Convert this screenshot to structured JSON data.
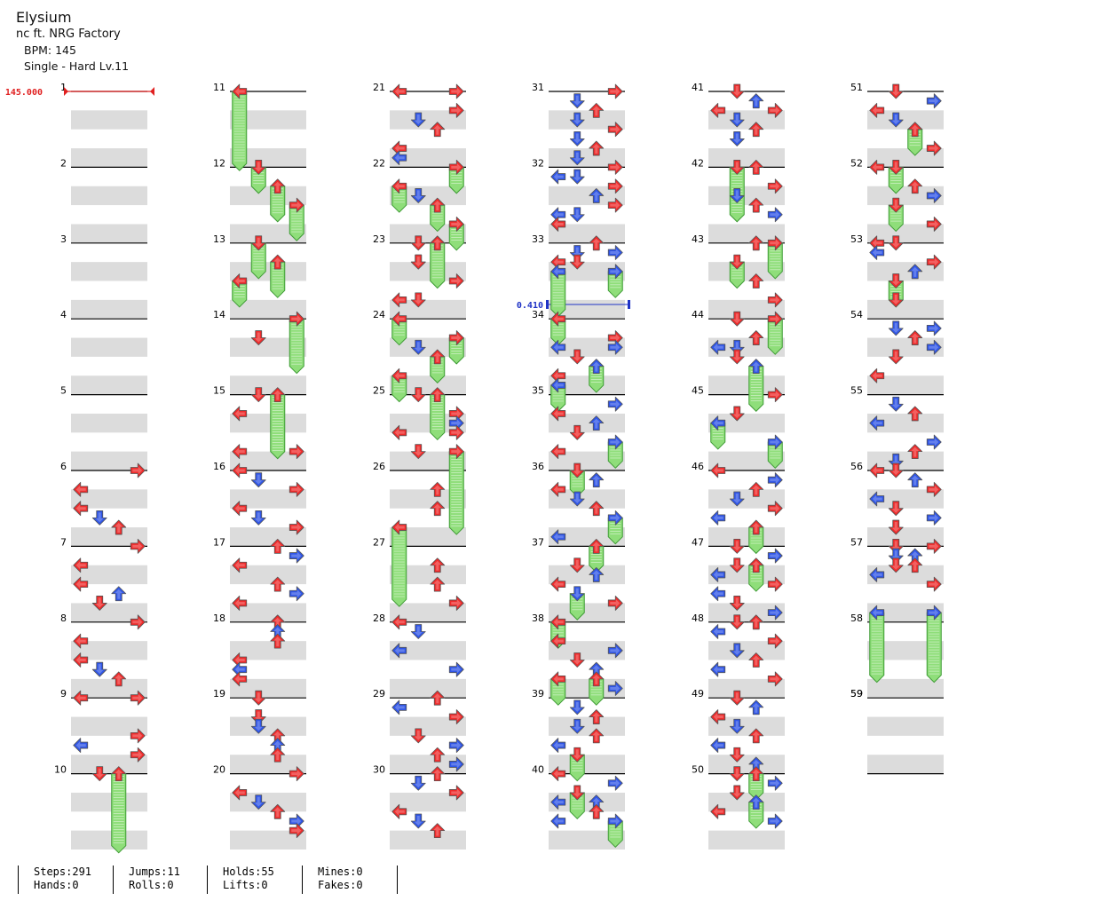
{
  "song": {
    "title": "Elysium",
    "artist": "nc ft. NRG Factory",
    "bpm_label": "BPM: 145",
    "difficulty_label": "Single - Hard  Lv.11"
  },
  "markers": {
    "bpm_change": {
      "measure": 1,
      "beat": 0,
      "text": "145.000"
    },
    "stop": {
      "measure": 34,
      "beat": -0.25,
      "text": "0.410"
    }
  },
  "colors": {
    "red": "#ee2b2b",
    "blue": "#2f55e6",
    "yellow": "#f5dc1c",
    "hold_fill": "#8fde7a",
    "hold_stroke": "#3e9b35",
    "stripe": "#dcdcdc",
    "measure_line": "#000000",
    "bpm_color": "#e02020",
    "stop_color": "#1f33c6"
  },
  "measure_count": 59,
  "notes": [
    {
      "m": 6,
      "b": 0,
      "l": 3
    },
    {
      "m": 6,
      "b": 1,
      "l": 0
    },
    {
      "m": 6,
      "b": 2,
      "l": 0
    },
    {
      "m": 6,
      "b": 2.5,
      "l": 1
    },
    {
      "m": 6,
      "b": 3,
      "l": 2
    },
    {
      "m": 7,
      "b": 0,
      "l": 3
    },
    {
      "m": 7,
      "b": 1,
      "l": 0
    },
    {
      "m": 7,
      "b": 2,
      "l": 0
    },
    {
      "m": 7,
      "b": 2.5,
      "l": 2
    },
    {
      "m": 7,
      "b": 3,
      "l": 1
    },
    {
      "m": 8,
      "b": 0,
      "l": 3
    },
    {
      "m": 8,
      "b": 1,
      "l": 0
    },
    {
      "m": 8,
      "b": 2,
      "l": 0
    },
    {
      "m": 8,
      "b": 2.5,
      "l": 1
    },
    {
      "m": 8,
      "b": 3,
      "l": 2
    },
    {
      "m": 9,
      "b": 0,
      "l": 0
    },
    {
      "m": 9,
      "b": 0,
      "l": 3
    },
    {
      "m": 9,
      "b": 2,
      "l": 3
    },
    {
      "m": 9,
      "b": 2.5,
      "l": 0
    },
    {
      "m": 9,
      "b": 3,
      "l": 3
    },
    {
      "m": 10,
      "b": 0,
      "l": 1
    },
    {
      "m": 10,
      "b": 0,
      "l": 2,
      "hold": 3.8
    },
    {
      "m": 11,
      "b": 0,
      "l": 0,
      "hold": 3.8
    },
    {
      "m": 12,
      "b": 0,
      "l": 1,
      "hold": 1
    },
    {
      "m": 12,
      "b": 1,
      "l": 2,
      "hold": 1.5
    },
    {
      "m": 12,
      "b": 2,
      "l": 3,
      "hold": 1.5
    },
    {
      "m": 13,
      "b": 0,
      "l": 1,
      "hold": 1.5
    },
    {
      "m": 13,
      "b": 1,
      "l": 2,
      "hold": 1.5
    },
    {
      "m": 13,
      "b": 2,
      "l": 0,
      "hold": 1
    },
    {
      "m": 14,
      "b": 0,
      "l": 3,
      "hold": 2.5
    },
    {
      "m": 14,
      "b": 1,
      "l": 1
    },
    {
      "m": 15,
      "b": 0,
      "l": 1
    },
    {
      "m": 15,
      "b": 0,
      "l": 2,
      "hold": 3
    },
    {
      "m": 15,
      "b": 1,
      "l": 0
    },
    {
      "m": 15,
      "b": 3,
      "l": 0
    },
    {
      "m": 15,
      "b": 3,
      "l": 3
    },
    {
      "m": 16,
      "b": 0,
      "l": 0
    },
    {
      "m": 16,
      "b": 0.5,
      "l": 1
    },
    {
      "m": 16,
      "b": 1,
      "l": 3
    },
    {
      "m": 16,
      "b": 2,
      "l": 0
    },
    {
      "m": 16,
      "b": 2.5,
      "l": 1
    },
    {
      "m": 16,
      "b": 3,
      "l": 3
    },
    {
      "m": 17,
      "b": 0,
      "l": 2
    },
    {
      "m": 17,
      "b": 0.5,
      "l": 3
    },
    {
      "m": 17,
      "b": 1,
      "l": 0
    },
    {
      "m": 17,
      "b": 2,
      "l": 2
    },
    {
      "m": 17,
      "b": 2.5,
      "l": 3
    },
    {
      "m": 17,
      "b": 3,
      "l": 0
    },
    {
      "m": 18,
      "b": 0,
      "l": 2
    },
    {
      "m": 18,
      "b": 0.5,
      "l": 2
    },
    {
      "m": 18,
      "b": 1,
      "l": 2
    },
    {
      "m": 18,
      "b": 2,
      "l": 0
    },
    {
      "m": 18,
      "b": 2.5,
      "l": 0
    },
    {
      "m": 18,
      "b": 3,
      "l": 0
    },
    {
      "m": 19,
      "b": 0,
      "l": 1
    },
    {
      "m": 19,
      "b": 1,
      "l": 1
    },
    {
      "m": 19,
      "b": 1.5,
      "l": 1
    },
    {
      "m": 19,
      "b": 2,
      "l": 2
    },
    {
      "m": 19,
      "b": 2.5,
      "l": 2
    },
    {
      "m": 19,
      "b": 3,
      "l": 2
    },
    {
      "m": 20,
      "b": 0,
      "l": 3
    },
    {
      "m": 20,
      "b": 1,
      "l": 0
    },
    {
      "m": 20,
      "b": 1.5,
      "l": 1
    },
    {
      "m": 20,
      "b": 2,
      "l": 2
    },
    {
      "m": 20,
      "b": 2.5,
      "l": 3
    },
    {
      "m": 20,
      "b": 3,
      "l": 3
    },
    {
      "m": 21,
      "b": 0,
      "l": 0
    },
    {
      "m": 21,
      "b": 0,
      "l": 3
    },
    {
      "m": 21,
      "b": 1,
      "l": 3
    },
    {
      "m": 21,
      "b": 1.5,
      "l": 1
    },
    {
      "m": 21,
      "b": 2,
      "l": 2
    },
    {
      "m": 21,
      "b": 3,
      "l": 0
    },
    {
      "m": 21,
      "b": 3.5,
      "l": 0
    },
    {
      "m": 22,
      "b": 0,
      "l": 3,
      "hold": 1
    },
    {
      "m": 22,
      "b": 1,
      "l": 0,
      "hold": 1
    },
    {
      "m": 22,
      "b": 1.5,
      "l": 1
    },
    {
      "m": 22,
      "b": 2,
      "l": 2,
      "hold": 1
    },
    {
      "m": 22,
      "b": 3,
      "l": 3,
      "hold": 1
    },
    {
      "m": 23,
      "b": 0,
      "l": 1
    },
    {
      "m": 23,
      "b": 0,
      "l": 2,
      "hold": 2
    },
    {
      "m": 23,
      "b": 1,
      "l": 1
    },
    {
      "m": 23,
      "b": 1,
      "l": 1
    },
    {
      "m": 23,
      "b": 2,
      "l": 3
    },
    {
      "m": 23,
      "b": 3,
      "l": 0
    },
    {
      "m": 23,
      "b": 3,
      "l": 1
    },
    {
      "m": 24,
      "b": 0,
      "l": 0,
      "hold": 1
    },
    {
      "m": 24,
      "b": 1,
      "l": 3,
      "hold": 1
    },
    {
      "m": 24,
      "b": 1.5,
      "l": 1
    },
    {
      "m": 24,
      "b": 2,
      "l": 2,
      "hold": 1
    },
    {
      "m": 24,
      "b": 3,
      "l": 0,
      "hold": 1
    },
    {
      "m": 25,
      "b": 0,
      "l": 1
    },
    {
      "m": 25,
      "b": 0,
      "l": 2,
      "hold": 2
    },
    {
      "m": 25,
      "b": 1,
      "l": 3
    },
    {
      "m": 25,
      "b": 1.5,
      "l": 3
    },
    {
      "m": 25,
      "b": 2,
      "l": 0
    },
    {
      "m": 25,
      "b": 2,
      "l": 3
    },
    {
      "m": 25,
      "b": 3,
      "l": 1
    },
    {
      "m": 25,
      "b": 3,
      "l": 3,
      "hold": 4
    },
    {
      "m": 26,
      "b": 1,
      "l": 2
    },
    {
      "m": 26,
      "b": 2,
      "l": 2
    },
    {
      "m": 26,
      "b": 3,
      "l": 0,
      "hold": 3.8
    },
    {
      "m": 27,
      "b": 1,
      "l": 2
    },
    {
      "m": 27,
      "b": 2,
      "l": 2
    },
    {
      "m": 27,
      "b": 3,
      "l": 3
    },
    {
      "m": 28,
      "b": 0,
      "l": 0
    },
    {
      "m": 28,
      "b": 0.5,
      "l": 1
    },
    {
      "m": 28,
      "b": 1.5,
      "l": 0
    },
    {
      "m": 28,
      "b": 2.5,
      "l": 3
    },
    {
      "m": 29,
      "b": 0,
      "l": 2
    },
    {
      "m": 29,
      "b": 0.5,
      "l": 0
    },
    {
      "m": 29,
      "b": 1,
      "l": 3
    },
    {
      "m": 29,
      "b": 2,
      "l": 1
    },
    {
      "m": 29,
      "b": 2.5,
      "l": 3
    },
    {
      "m": 29,
      "b": 3,
      "l": 2
    },
    {
      "m": 29,
      "b": 3.5,
      "l": 3
    },
    {
      "m": 30,
      "b": 0,
      "l": 2
    },
    {
      "m": 30,
      "b": 0.5,
      "l": 1
    },
    {
      "m": 30,
      "b": 1,
      "l": 3
    },
    {
      "m": 30,
      "b": 2,
      "l": 0
    },
    {
      "m": 30,
      "b": 2.5,
      "l": 1
    },
    {
      "m": 30,
      "b": 3,
      "l": 2
    },
    {
      "m": 31,
      "b": 0,
      "l": 3
    },
    {
      "m": 31,
      "b": 0.5,
      "l": 1
    },
    {
      "m": 31,
      "b": 1,
      "l": 2
    },
    {
      "m": 31,
      "b": 1.5,
      "l": 1
    },
    {
      "m": 31,
      "b": 2,
      "l": 3
    },
    {
      "m": 31,
      "b": 2.5,
      "l": 1
    },
    {
      "m": 31,
      "b": 3,
      "l": 2
    },
    {
      "m": 31,
      "b": 3.5,
      "l": 1
    },
    {
      "m": 32,
      "b": 0,
      "l": 3
    },
    {
      "m": 32,
      "b": 0.5,
      "l": 0
    },
    {
      "m": 32,
      "b": 0.5,
      "l": 1
    },
    {
      "m": 32,
      "b": 1,
      "l": 3
    },
    {
      "m": 32,
      "b": 1.5,
      "l": 2
    },
    {
      "m": 32,
      "b": 2,
      "l": 3
    },
    {
      "m": 32,
      "b": 2.5,
      "l": 0
    },
    {
      "m": 32,
      "b": 2.5,
      "l": 1
    },
    {
      "m": 32,
      "b": 3,
      "l": 0
    },
    {
      "m": 33,
      "b": 0,
      "l": 2
    },
    {
      "m": 33,
      "b": 0.5,
      "l": 1
    },
    {
      "m": 33,
      "b": 0.5,
      "l": 3
    },
    {
      "m": 33,
      "b": 1,
      "l": 0
    },
    {
      "m": 33,
      "b": 1,
      "l": 1
    },
    {
      "m": 33,
      "b": 1.5,
      "l": 0,
      "hold": 2
    },
    {
      "m": 33,
      "b": 1.5,
      "l": 3,
      "hold": 1
    },
    {
      "m": 34,
      "b": 0,
      "l": 0,
      "hold": 1
    },
    {
      "m": 34,
      "b": 1,
      "l": 3
    },
    {
      "m": 34,
      "b": 1.5,
      "l": 0
    },
    {
      "m": 34,
      "b": 1.5,
      "l": 3
    },
    {
      "m": 34,
      "b": 2,
      "l": 1
    },
    {
      "m": 34,
      "b": 2.5,
      "l": 2,
      "hold": 1
    },
    {
      "m": 34,
      "b": 3,
      "l": 0
    },
    {
      "m": 34,
      "b": 3.5,
      "l": 0,
      "hold": 1
    },
    {
      "m": 35,
      "b": 0.5,
      "l": 3
    },
    {
      "m": 35,
      "b": 1,
      "l": 0
    },
    {
      "m": 35,
      "b": 1.5,
      "l": 2
    },
    {
      "m": 35,
      "b": 2,
      "l": 1
    },
    {
      "m": 35,
      "b": 2.5,
      "l": 3,
      "hold": 1
    },
    {
      "m": 35,
      "b": 3,
      "l": 0
    },
    {
      "m": 36,
      "b": 0,
      "l": 1,
      "hold": 1
    },
    {
      "m": 36,
      "b": 0.5,
      "l": 2
    },
    {
      "m": 36,
      "b": 1,
      "l": 0
    },
    {
      "m": 36,
      "b": 1.5,
      "l": 1
    },
    {
      "m": 36,
      "b": 2,
      "l": 2
    },
    {
      "m": 36,
      "b": 2.5,
      "l": 3,
      "hold": 1
    },
    {
      "m": 36,
      "b": 3.5,
      "l": 0
    },
    {
      "m": 37,
      "b": 0,
      "l": 2,
      "hold": 1
    },
    {
      "m": 37,
      "b": 1,
      "l": 1
    },
    {
      "m": 37,
      "b": 1.5,
      "l": 2
    },
    {
      "m": 37,
      "b": 2,
      "l": 0
    },
    {
      "m": 37,
      "b": 2.5,
      "l": 1,
      "hold": 1
    },
    {
      "m": 37,
      "b": 3,
      "l": 3
    },
    {
      "m": 38,
      "b": 0,
      "l": 0,
      "hold": 1
    },
    {
      "m": 38,
      "b": 1,
      "l": 0
    },
    {
      "m": 38,
      "b": 1.5,
      "l": 3
    },
    {
      "m": 38,
      "b": 2,
      "l": 1
    },
    {
      "m": 38,
      "b": 2.5,
      "l": 2
    },
    {
      "m": 38,
      "b": 3,
      "l": 0,
      "hold": 1
    },
    {
      "m": 38,
      "b": 3,
      "l": 2,
      "hold": 1
    },
    {
      "m": 38,
      "b": 3.5,
      "l": 3
    },
    {
      "m": 39,
      "b": 0.5,
      "l": 1
    },
    {
      "m": 39,
      "b": 1,
      "l": 2
    },
    {
      "m": 39,
      "b": 1.5,
      "l": 1
    },
    {
      "m": 39,
      "b": 2,
      "l": 2
    },
    {
      "m": 39,
      "b": 2.5,
      "l": 0
    },
    {
      "m": 39,
      "b": 3,
      "l": 1,
      "hold": 1
    },
    {
      "m": 40,
      "b": 0,
      "l": 0
    },
    {
      "m": 40,
      "b": 0.5,
      "l": 3
    },
    {
      "m": 40,
      "b": 1,
      "l": 1,
      "hold": 1
    },
    {
      "m": 40,
      "b": 1.5,
      "l": 0
    },
    {
      "m": 40,
      "b": 1.5,
      "l": 2
    },
    {
      "m": 40,
      "b": 2,
      "l": 2
    },
    {
      "m": 40,
      "b": 2.5,
      "l": 0
    },
    {
      "m": 40,
      "b": 2.5,
      "l": 3,
      "hold": 1
    },
    {
      "m": 41,
      "b": 0,
      "l": 1
    },
    {
      "m": 41,
      "b": 0.5,
      "l": 2
    },
    {
      "m": 41,
      "b": 1,
      "l": 0
    },
    {
      "m": 41,
      "b": 1,
      "l": 3
    },
    {
      "m": 41,
      "b": 1.5,
      "l": 1
    },
    {
      "m": 41,
      "b": 2,
      "l": 2
    },
    {
      "m": 41,
      "b": 2.5,
      "l": 1
    },
    {
      "m": 41,
      "b": 2.5,
      "l": 1
    },
    {
      "m": 42,
      "b": 0,
      "l": 2
    },
    {
      "m": 42,
      "b": 0,
      "l": 1,
      "hold": 2.5
    },
    {
      "m": 42,
      "b": 1,
      "l": 3
    },
    {
      "m": 42,
      "b": 1.5,
      "l": 1
    },
    {
      "m": 42,
      "b": 2,
      "l": 2
    },
    {
      "m": 42,
      "b": 2.5,
      "l": 3
    },
    {
      "m": 43,
      "b": 0,
      "l": 2
    },
    {
      "m": 43,
      "b": 0,
      "l": 3,
      "hold": 1.5
    },
    {
      "m": 43,
      "b": 1,
      "l": 1,
      "hold": 1
    },
    {
      "m": 43,
      "b": 2,
      "l": 2
    },
    {
      "m": 43,
      "b": 3,
      "l": 3
    },
    {
      "m": 44,
      "b": 0,
      "l": 1
    },
    {
      "m": 44,
      "b": 0,
      "l": 3,
      "hold": 1.5
    },
    {
      "m": 44,
      "b": 1,
      "l": 2
    },
    {
      "m": 44,
      "b": 1.5,
      "l": 0
    },
    {
      "m": 44,
      "b": 1.5,
      "l": 1
    },
    {
      "m": 44,
      "b": 2,
      "l": 1
    },
    {
      "m": 44,
      "b": 2.5,
      "l": 2,
      "hold": 2
    },
    {
      "m": 45,
      "b": 0,
      "l": 3
    },
    {
      "m": 45,
      "b": 1,
      "l": 1
    },
    {
      "m": 45,
      "b": 1.5,
      "l": 0,
      "hold": 1
    },
    {
      "m": 45,
      "b": 2.5,
      "l": 3,
      "hold": 1
    },
    {
      "m": 46,
      "b": 0,
      "l": 0
    },
    {
      "m": 46,
      "b": 0.5,
      "l": 3
    },
    {
      "m": 46,
      "b": 1,
      "l": 2
    },
    {
      "m": 46,
      "b": 1.5,
      "l": 1
    },
    {
      "m": 46,
      "b": 2,
      "l": 3
    },
    {
      "m": 46,
      "b": 2.5,
      "l": 0
    },
    {
      "m": 46,
      "b": 3,
      "l": 2,
      "hold": 1
    },
    {
      "m": 47,
      "b": 0,
      "l": 1
    },
    {
      "m": 47,
      "b": 0.5,
      "l": 3
    },
    {
      "m": 47,
      "b": 1,
      "l": 1
    },
    {
      "m": 47,
      "b": 1,
      "l": 2,
      "hold": 1
    },
    {
      "m": 47,
      "b": 1.5,
      "l": 0
    },
    {
      "m": 47,
      "b": 2,
      "l": 3
    },
    {
      "m": 47,
      "b": 2.5,
      "l": 0
    },
    {
      "m": 47,
      "b": 3,
      "l": 1
    },
    {
      "m": 47,
      "b": 3.5,
      "l": 3
    },
    {
      "m": 48,
      "b": 0,
      "l": 1
    },
    {
      "m": 48,
      "b": 0,
      "l": 2
    },
    {
      "m": 48,
      "b": 0.5,
      "l": 0
    },
    {
      "m": 48,
      "b": 1,
      "l": 3
    },
    {
      "m": 48,
      "b": 1.5,
      "l": 1
    },
    {
      "m": 48,
      "b": 2,
      "l": 2
    },
    {
      "m": 48,
      "b": 2.5,
      "l": 0
    },
    {
      "m": 48,
      "b": 3,
      "l": 3
    },
    {
      "m": 49,
      "b": 0,
      "l": 1
    },
    {
      "m": 49,
      "b": 0.5,
      "l": 2
    },
    {
      "m": 49,
      "b": 1,
      "l": 0
    },
    {
      "m": 49,
      "b": 1.5,
      "l": 1
    },
    {
      "m": 49,
      "b": 2,
      "l": 2
    },
    {
      "m": 49,
      "b": 2.5,
      "l": 0
    },
    {
      "m": 49,
      "b": 3,
      "l": 1
    },
    {
      "m": 49,
      "b": 3.5,
      "l": 2
    },
    {
      "m": 50,
      "b": 0,
      "l": 1
    },
    {
      "m": 50,
      "b": 0,
      "l": 2,
      "hold": 1
    },
    {
      "m": 50,
      "b": 0.5,
      "l": 3
    },
    {
      "m": 50,
      "b": 1,
      "l": 1
    },
    {
      "m": 50,
      "b": 1.5,
      "l": 2,
      "hold": 1
    },
    {
      "m": 50,
      "b": 2,
      "l": 0
    },
    {
      "m": 50,
      "b": 2.5,
      "l": 3
    },
    {
      "m": 51,
      "b": 0,
      "l": 1
    },
    {
      "m": 51,
      "b": 0.5,
      "l": 3
    },
    {
      "m": 51,
      "b": 1,
      "l": 0
    },
    {
      "m": 51,
      "b": 1.5,
      "l": 1
    },
    {
      "m": 51,
      "b": 2,
      "l": 2,
      "hold": 1
    },
    {
      "m": 51,
      "b": 3,
      "l": 3
    },
    {
      "m": 52,
      "b": 0,
      "l": 0
    },
    {
      "m": 52,
      "b": 0,
      "l": 1,
      "hold": 1
    },
    {
      "m": 52,
      "b": 1,
      "l": 2
    },
    {
      "m": 52,
      "b": 1.5,
      "l": 3
    },
    {
      "m": 52,
      "b": 2,
      "l": 1,
      "hold": 1
    },
    {
      "m": 52,
      "b": 3,
      "l": 3
    },
    {
      "m": 53,
      "b": 0,
      "l": 0
    },
    {
      "m": 53,
      "b": 0,
      "l": 1
    },
    {
      "m": 53,
      "b": 0.5,
      "l": 0
    },
    {
      "m": 53,
      "b": 1,
      "l": 3
    },
    {
      "m": 53,
      "b": 1.5,
      "l": 2
    },
    {
      "m": 53,
      "b": 2,
      "l": 1,
      "hold": 1
    },
    {
      "m": 53,
      "b": 3,
      "l": 1
    },
    {
      "m": 54,
      "b": 0.5,
      "l": 1
    },
    {
      "m": 54,
      "b": 0.5,
      "l": 3
    },
    {
      "m": 54,
      "b": 1,
      "l": 2
    },
    {
      "m": 54,
      "b": 1.5,
      "l": 3
    },
    {
      "m": 54,
      "b": 2,
      "l": 1
    },
    {
      "m": 54,
      "b": 3,
      "l": 0
    },
    {
      "m": 55,
      "b": 0.5,
      "l": 1
    },
    {
      "m": 55,
      "b": 1,
      "l": 2
    },
    {
      "m": 55,
      "b": 1.5,
      "l": 0
    },
    {
      "m": 55,
      "b": 2.5,
      "l": 3
    },
    {
      "m": 55,
      "b": 3,
      "l": 2
    },
    {
      "m": 55,
      "b": 3.5,
      "l": 1
    },
    {
      "m": 56,
      "b": 0,
      "l": 0
    },
    {
      "m": 56,
      "b": 0,
      "l": 1
    },
    {
      "m": 56,
      "b": 0.5,
      "l": 2
    },
    {
      "m": 56,
      "b": 1,
      "l": 3
    },
    {
      "m": 56,
      "b": 1.5,
      "l": 0
    },
    {
      "m": 56,
      "b": 2,
      "l": 1
    },
    {
      "m": 56,
      "b": 2.5,
      "l": 3
    },
    {
      "m": 56,
      "b": 3,
      "l": 1
    },
    {
      "m": 57,
      "b": 0,
      "l": 1
    },
    {
      "m": 57,
      "b": 0,
      "l": 3
    },
    {
      "m": 57,
      "b": 0.5,
      "l": 1
    },
    {
      "m": 57,
      "b": 0.5,
      "l": 2
    },
    {
      "m": 57,
      "b": 1,
      "l": 1
    },
    {
      "m": 57,
      "b": 1,
      "l": 2
    },
    {
      "m": 57,
      "b": 1.5,
      "l": 0
    },
    {
      "m": 57,
      "b": 2,
      "l": 3
    },
    {
      "m": 57,
      "b": 3.5,
      "l": 0,
      "hold": 3.3
    },
    {
      "m": 57,
      "b": 3.5,
      "l": 3,
      "hold": 3.3
    }
  ],
  "stats": [
    [
      "Steps:291",
      "Hands:0"
    ],
    [
      "Jumps:11",
      "Rolls:0"
    ],
    [
      "Holds:55",
      "Lifts:0"
    ],
    [
      "Mines:0",
      "Fakes:0"
    ]
  ]
}
